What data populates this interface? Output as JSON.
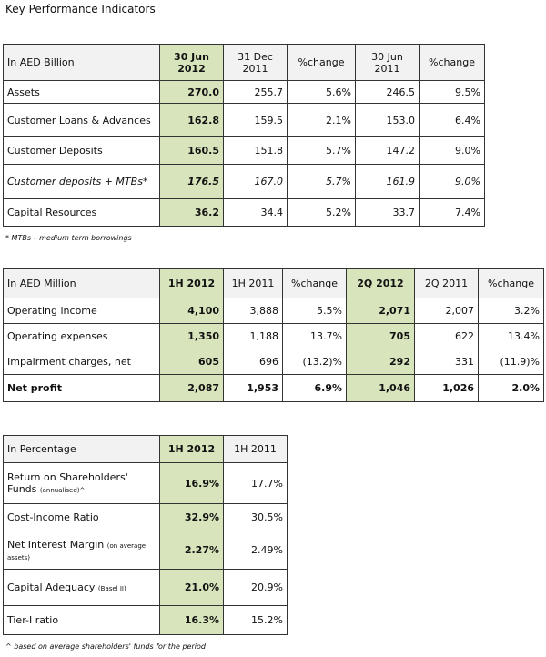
{
  "title": "Key Performance Indicators",
  "table1": {
    "header": [
      "In AED Billion",
      "30 Jun 2012",
      "31 Dec 2011",
      "%change",
      "30 Jun 2011",
      "%change"
    ],
    "rows": [
      {
        "cells": [
          "Assets",
          "270.0",
          "255.7",
          "5.6%",
          "246.5",
          "9.5%"
        ]
      },
      {
        "cells": [
          "Customer Loans & Advances",
          "162.8",
          "159.5",
          "2.1%",
          "153.0",
          "6.4%"
        ]
      },
      {
        "cells": [
          "Customer Deposits",
          "160.5",
          "151.8",
          "5.7%",
          "147.2",
          "9.0%"
        ]
      },
      {
        "cells": [
          "Customer deposits + MTBs*",
          "176.5",
          "167.0",
          "5.7%",
          "161.9",
          "9.0%"
        ]
      },
      {
        "cells": [
          "Capital Resources",
          "36.2",
          "34.4",
          "5.2%",
          "33.7",
          "7.4%"
        ]
      }
    ],
    "footnote": "* MTBs – medium term borrowings"
  },
  "table2": {
    "header": [
      "In AED Million",
      "1H 2012",
      "1H 2011",
      "%change",
      "2Q 2012",
      "2Q 2011",
      "%change"
    ],
    "rows": [
      {
        "cells": [
          "Operating income",
          "4,100",
          "3,888",
          "5.5%",
          "2,071",
          "2,007",
          "3.2%"
        ]
      },
      {
        "cells": [
          "Operating expenses",
          "1,350",
          "1,188",
          "13.7%",
          "705",
          "622",
          "13.4%"
        ]
      },
      {
        "cells": [
          "Impairment charges, net",
          "605",
          "696",
          "(13.2)%",
          "292",
          "331",
          "(11.9)%"
        ]
      },
      {
        "cells": [
          "Net profit",
          "2,087",
          "1,953",
          "6.9%",
          "1,046",
          "1,026",
          "2.0%"
        ]
      }
    ]
  },
  "table3": {
    "header": [
      "In Percentage",
      "1H 2012",
      "1H 2011"
    ],
    "rows": [
      {
        "cells": [
          "Return on Shareholders' Funds",
          "16.9%",
          "17.7%"
        ],
        "note": "(annualised)^"
      },
      {
        "cells": [
          "Cost-Income Ratio",
          "32.9%",
          "30.5%"
        ]
      },
      {
        "cells": [
          "Net Interest Margin",
          "2.27%",
          "2.49%"
        ],
        "note": "(on average assets)"
      },
      {
        "cells": [
          "Capital Adequacy",
          "21.0%",
          "20.9%"
        ],
        "note": "(Basel II)"
      },
      {
        "cells": [
          "Tier-I ratio",
          "16.3%",
          "15.2%"
        ]
      }
    ],
    "footnote": "^ based on average shareholders' funds for the period"
  }
}
